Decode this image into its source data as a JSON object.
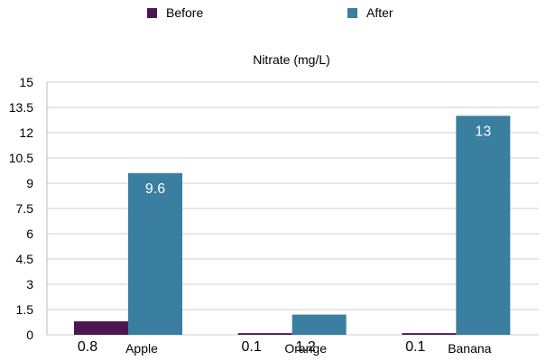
{
  "chart_data": {
    "type": "bar",
    "title": "Nitrate (mg/L)",
    "categories": [
      "Apple",
      "Orange",
      "Banana"
    ],
    "series": [
      {
        "name": "Before",
        "values": [
          0.8,
          0.1,
          0.1
        ],
        "color": "#4a1850"
      },
      {
        "name": "After",
        "values": [
          9.6,
          1.2,
          13
        ],
        "color": "#3a7ea0"
      }
    ],
    "ylim": [
      0,
      15
    ],
    "yticks": [
      "0",
      "1.5",
      "3",
      "4.5",
      "6",
      "7.5",
      "9",
      "10.5",
      "12",
      "13.5",
      "15"
    ],
    "xlabel": "",
    "ylabel": "",
    "grid": true,
    "legend_position": "top"
  }
}
